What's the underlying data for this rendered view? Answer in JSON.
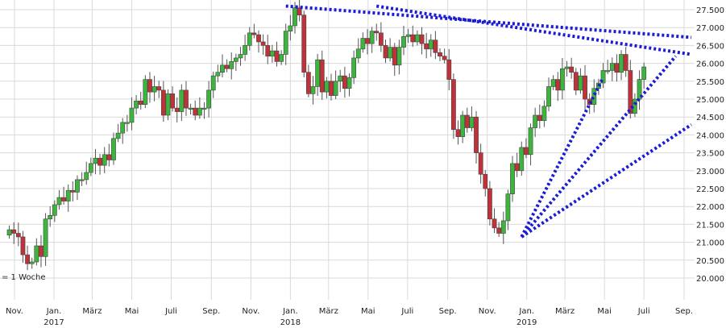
{
  "chart_data": {
    "type": "candlestick",
    "interval_note": "= 1 Woche",
    "y_ticks": [
      "20.000",
      "20.500",
      "21.000",
      "21.500",
      "22.000",
      "22.500",
      "23.000",
      "23.500",
      "24.000",
      "24.500",
      "25.000",
      "25.500",
      "26.000",
      "26.500",
      "27.000",
      "27.500"
    ],
    "ylim": [
      19600,
      27750
    ],
    "x_ticks": [
      {
        "label": "Nov.",
        "year": "",
        "date": "2016-11-01"
      },
      {
        "label": "Jan.",
        "year": "2017",
        "date": "2017-01-01"
      },
      {
        "label": "März",
        "year": "",
        "date": "2017-03-01"
      },
      {
        "label": "Mai",
        "year": "",
        "date": "2017-05-01"
      },
      {
        "label": "Juli",
        "year": "",
        "date": "2017-07-01"
      },
      {
        "label": "Sep.",
        "year": "",
        "date": "2017-09-01"
      },
      {
        "label": "Nov.",
        "year": "",
        "date": "2017-11-01"
      },
      {
        "label": "Jan.",
        "year": "2018",
        "date": "2018-01-01"
      },
      {
        "label": "März",
        "year": "",
        "date": "2018-03-01"
      },
      {
        "label": "Mai",
        "year": "",
        "date": "2018-05-01"
      },
      {
        "label": "Juli",
        "year": "",
        "date": "2018-07-01"
      },
      {
        "label": "Sep.",
        "year": "",
        "date": "2018-09-01"
      },
      {
        "label": "Nov.",
        "year": "",
        "date": "2018-11-01"
      },
      {
        "label": "Jan.",
        "year": "2019",
        "date": "2019-01-01"
      },
      {
        "label": "März",
        "year": "",
        "date": "2019-03-01"
      },
      {
        "label": "Mai",
        "year": "",
        "date": "2019-05-01"
      },
      {
        "label": "Juli",
        "year": "",
        "date": "2019-07-01"
      },
      {
        "label": "Sep.",
        "year": "",
        "date": "2019-09-01"
      }
    ],
    "series": [
      {
        "close_values": [
          21350,
          21250,
          21150,
          20650,
          20400,
          20450,
          20900,
          20600,
          21650,
          21750,
          22050,
          22250,
          22150,
          22450,
          22400,
          22750,
          22750,
          22950,
          23200,
          23350,
          23150,
          23450,
          23300,
          23900,
          24050,
          24350,
          24350,
          24750,
          24950,
          24850,
          25550,
          25200,
          25350,
          25250,
          24550,
          25150,
          24750,
          24650,
          25250,
          24750,
          24750,
          24550,
          24750,
          24750,
          25250,
          25650,
          25750,
          25950,
          25850,
          26050,
          26150,
          26250,
          26500,
          26850,
          26800,
          26600,
          26500,
          26200,
          26350,
          26050,
          26250,
          26900,
          27050,
          27550,
          27350,
          25750,
          25150,
          25350,
          26100,
          25200,
          25500,
          25100,
          25500,
          25650,
          25300,
          25600,
          26150,
          26400,
          26700,
          26550,
          26900,
          26850,
          26500,
          26150,
          26450,
          25950,
          26450,
          26750,
          26800,
          26600,
          26800,
          26550,
          26400,
          26650,
          26300,
          26200,
          26100,
          25550,
          24150,
          23950,
          24550,
          24200,
          24500,
          23500,
          22900,
          22500,
          21650,
          21400,
          21250,
          21600,
          22350,
          23200,
          23000,
          23650,
          23450,
          24200,
          24550,
          24400,
          24800,
          25350,
          25550,
          25250,
          25850,
          25900,
          25750,
          25250,
          25650,
          25000,
          24850,
          25300,
          25450,
          25800,
          25800,
          26000,
          25750,
          26250,
          25800,
          24600,
          25000,
          25550,
          25900
        ],
        "x_start": "2016-10-24",
        "step_days": 7
      }
    ],
    "trendlines": [
      {
        "from": [
          "2017-12-25",
          27600
        ],
        "to": [
          "2019-09-30",
          26700
        ]
      },
      {
        "from": [
          "2018-05-14",
          27600
        ],
        "to": [
          "2019-09-30",
          26200
        ]
      },
      {
        "from": [
          "2018-12-24",
          21150
        ],
        "to": [
          "2019-04-29",
          25600
        ]
      },
      {
        "from": [
          "2018-12-24",
          21150
        ],
        "to": [
          "2019-08-19",
          26200
        ]
      },
      {
        "from": [
          "2018-12-24",
          21150
        ],
        "to": [
          "2019-09-30",
          24500
        ]
      }
    ],
    "colors": {
      "up": "#3db53d",
      "down": "#c0313a",
      "wick": "#555555",
      "trend": "#1c1cd4",
      "grid": "#d9d9d9"
    }
  }
}
